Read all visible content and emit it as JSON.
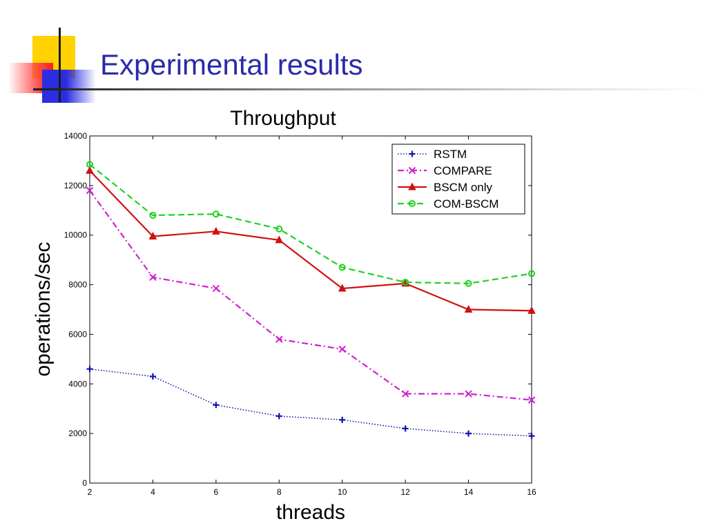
{
  "slide": {
    "title": "Experimental results"
  },
  "chart_data": {
    "type": "line",
    "title": "Throughput",
    "xlabel": "threads",
    "ylabel": "operations/sec",
    "x": [
      2,
      4,
      6,
      8,
      10,
      12,
      14,
      16
    ],
    "xlim": [
      2,
      16
    ],
    "ylim": [
      0,
      14000
    ],
    "xticks": [
      2,
      4,
      6,
      8,
      10,
      12,
      14,
      16
    ],
    "yticks": [
      0,
      2000,
      4000,
      6000,
      8000,
      10000,
      12000,
      14000
    ],
    "grid": false,
    "legend_position": "top-right",
    "series": [
      {
        "name": "RSTM",
        "color": "#1010b0",
        "dash": "dotted",
        "marker": "plus",
        "values": [
          4600,
          4300,
          3150,
          2700,
          2550,
          2200,
          2000,
          1900
        ]
      },
      {
        "name": "COMPARE",
        "color": "#d020d0",
        "dash": "dashdot",
        "marker": "x",
        "values": [
          11800,
          8300,
          7850,
          5800,
          5400,
          3600,
          3600,
          3350
        ]
      },
      {
        "name": "BSCM only",
        "color": "#d01010",
        "dash": "solid",
        "marker": "triangle",
        "values": [
          12600,
          9950,
          10150,
          9800,
          7850,
          8050,
          7000,
          6950
        ]
      },
      {
        "name": "COM-BSCM",
        "color": "#20d020",
        "dash": "dashed",
        "marker": "circle",
        "values": [
          12850,
          10800,
          10850,
          10250,
          8700,
          8100,
          8050,
          8450
        ]
      }
    ]
  }
}
